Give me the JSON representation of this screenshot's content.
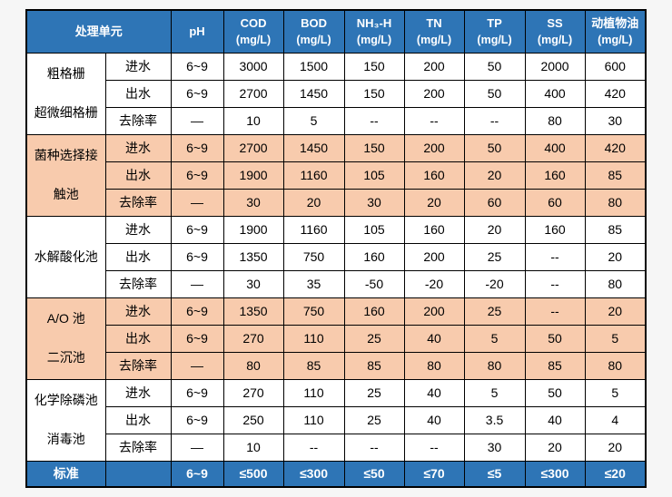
{
  "colors": {
    "header_bg": "#2e75b6",
    "orange_band": "#f8cbad",
    "white_band": "#ffffff",
    "border": "#000000",
    "page_bg": "#f6f6f6"
  },
  "table": {
    "header": {
      "unit_label": "处理单元",
      "cols": [
        {
          "label": "pH",
          "unit": ""
        },
        {
          "label": "COD",
          "unit": "(mg/L)"
        },
        {
          "label": "BOD",
          "unit": "(mg/L)"
        },
        {
          "label": "NH₃-H",
          "unit": "(mg/L)"
        },
        {
          "label": "TN",
          "unit": "(mg/L)"
        },
        {
          "label": "TP",
          "unit": "(mg/L)"
        },
        {
          "label": "SS",
          "unit": "(mg/L)"
        },
        {
          "label": "动植物油",
          "unit": "(mg/L)"
        }
      ]
    },
    "groups": [
      {
        "unit_lines": [
          "粗格栅",
          "超微细格栅"
        ],
        "bg": "white",
        "rows": [
          {
            "label": "进水",
            "values": [
              "6~9",
              "3000",
              "1500",
              "150",
              "200",
              "50",
              "2000",
              "600"
            ]
          },
          {
            "label": "出水",
            "values": [
              "6~9",
              "2700",
              "1450",
              "150",
              "200",
              "50",
              "400",
              "420"
            ]
          },
          {
            "label": "去除率",
            "values": [
              "—",
              "10",
              "5",
              "--",
              "--",
              "--",
              "80",
              "30"
            ]
          }
        ]
      },
      {
        "unit_lines": [
          "菌种选择接",
          "触池"
        ],
        "bg": "orange",
        "rows": [
          {
            "label": "进水",
            "values": [
              "6~9",
              "2700",
              "1450",
              "150",
              "200",
              "50",
              "400",
              "420"
            ]
          },
          {
            "label": "出水",
            "values": [
              "6~9",
              "1900",
              "1160",
              "105",
              "160",
              "20",
              "160",
              "85"
            ]
          },
          {
            "label": "去除率",
            "values": [
              "—",
              "30",
              "20",
              "30",
              "20",
              "60",
              "60",
              "80"
            ]
          }
        ]
      },
      {
        "unit_lines": [
          "水解酸化池"
        ],
        "bg": "white",
        "rows": [
          {
            "label": "进水",
            "values": [
              "6~9",
              "1900",
              "1160",
              "105",
              "160",
              "20",
              "160",
              "85"
            ]
          },
          {
            "label": "出水",
            "values": [
              "6~9",
              "1350",
              "750",
              "160",
              "200",
              "25",
              "--",
              "20"
            ]
          },
          {
            "label": "去除率",
            "values": [
              "—",
              "30",
              "35",
              "-50",
              "-20",
              "-20",
              "--",
              "80"
            ]
          }
        ]
      },
      {
        "unit_lines": [
          "A/O 池",
          "二沉池"
        ],
        "bg": "orange",
        "rows": [
          {
            "label": "进水",
            "values": [
              "6~9",
              "1350",
              "750",
              "160",
              "200",
              "25",
              "--",
              "20"
            ]
          },
          {
            "label": "出水",
            "values": [
              "6~9",
              "270",
              "110",
              "25",
              "40",
              "5",
              "50",
              "5"
            ]
          },
          {
            "label": "去除率",
            "values": [
              "—",
              "80",
              "85",
              "85",
              "80",
              "80",
              "85",
              "80"
            ]
          }
        ]
      },
      {
        "unit_lines": [
          "化学除磷池",
          "消毒池"
        ],
        "bg": "white",
        "rows": [
          {
            "label": "进水",
            "values": [
              "6~9",
              "270",
              "110",
              "25",
              "40",
              "5",
              "50",
              "5"
            ]
          },
          {
            "label": "出水",
            "values": [
              "6~9",
              "250",
              "110",
              "25",
              "40",
              "3.5",
              "40",
              "4"
            ]
          },
          {
            "label": "去除率",
            "values": [
              "—",
              "10",
              "--",
              "--",
              "--",
              "30",
              "20",
              "20"
            ]
          }
        ]
      }
    ],
    "footer": {
      "label": "标准",
      "values": [
        "6~9",
        "≤500",
        "≤300",
        "≤50",
        "≤70",
        "≤5",
        "≤300",
        "≤20"
      ]
    }
  }
}
